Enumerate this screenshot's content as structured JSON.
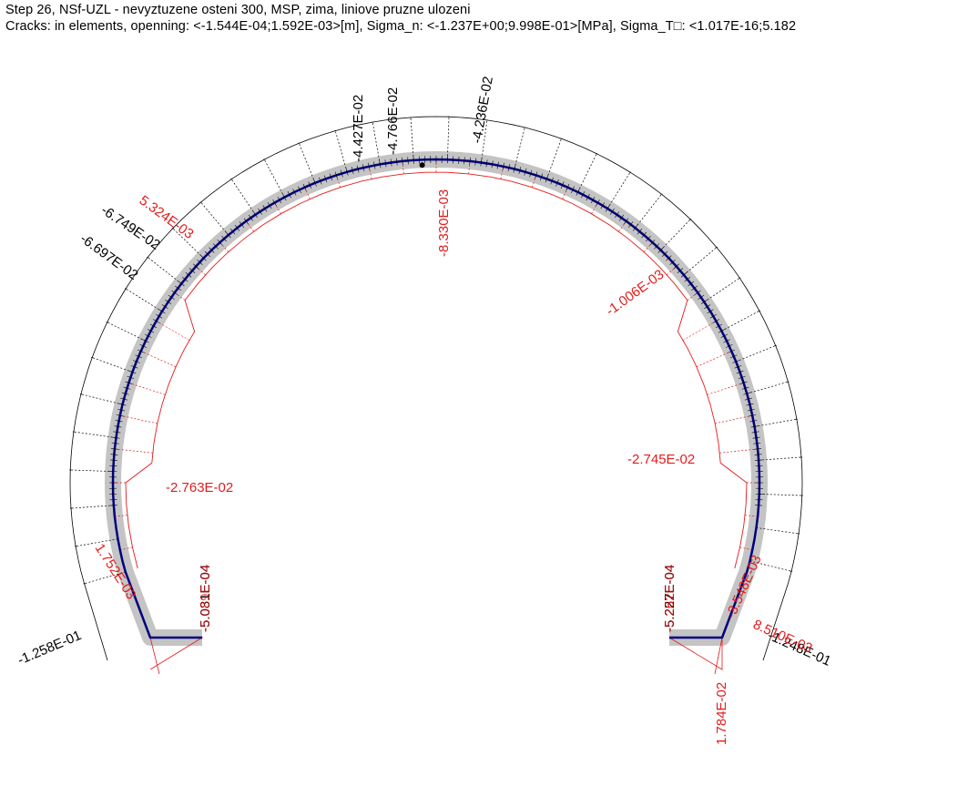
{
  "header": {
    "title": "Step 26, NSf-UZL - nevyztuzene osteni 300, MSP, zima, liniove pruzne ulozeni",
    "subtitle": "Cracks: in elements, openning: <-1.544E-04;1.592E-03>[m], Sigma_n: <-1.237E+00;9.998E-01>[MPa], Sigma_T□: <1.017E-16;5.182"
  },
  "colors": {
    "lining_axis": "#000080",
    "lining_band": "#c4c4c4",
    "crack_labels": "#000000",
    "stress_labels": "#e31b1b"
  },
  "labels": {
    "black": [
      "-4.427E-02",
      "-4.766E-02",
      "-4.236E-02",
      "-6.749E-02",
      "-6.697E-02",
      "-1.258E-01",
      "-1.248E-01"
    ],
    "red": [
      "5.324E-03",
      "-8.330E-03",
      "-1.006E-03",
      "-2.763E-02",
      "-2.745E-02",
      "1.752E-03",
      "1.784E-02",
      "8.510E-03",
      "-3.548E-03"
    ],
    "stacked_left": [
      "-5.081E-04",
      "-5.031E-04",
      "-5.089E-04"
    ],
    "stacked_right": [
      "-5.252E-04",
      "-5.227E-04",
      "-5.262E-04"
    ]
  }
}
